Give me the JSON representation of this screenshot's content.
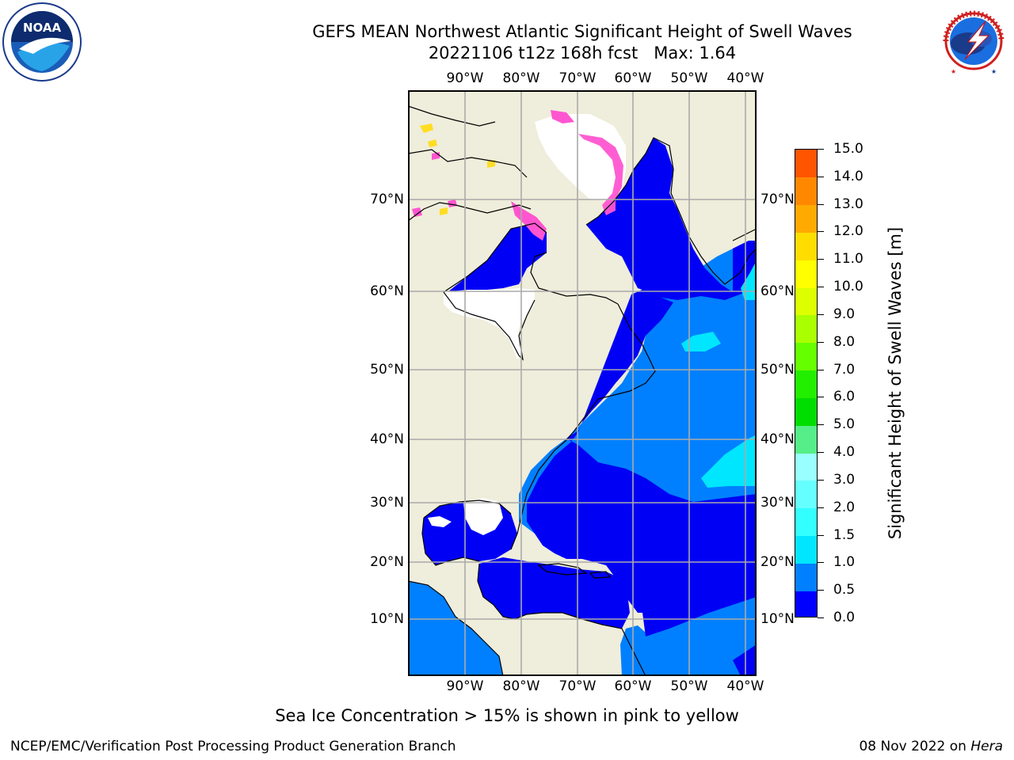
{
  "header": {
    "title_line1": "GEFS MEAN Northwest Atlantic Significant Height of Swell Waves",
    "title_line2": "20221106 t12z 168h fcst   Max: 1.64"
  },
  "logos": {
    "noaa_label": "NOAA",
    "noaa_ring_text": "NATIONAL OCEANIC AND ATMOSPHERIC ADMINISTRATION · U.S. DEPARTMENT OF COMMERCE",
    "nws_ring_text": "NATIONAL WEATHER SERVICE"
  },
  "map": {
    "lon_labels": [
      "90°W",
      "80°W",
      "70°W",
      "60°W",
      "50°W",
      "40°W"
    ],
    "lat_labels": [
      "70°N",
      "60°N",
      "50°N",
      "40°N",
      "30°N",
      "20°N",
      "10°N"
    ],
    "colors": {
      "land": "#efeddb",
      "ocean_low": "#0000f5",
      "ocean_mid": "#0080ff",
      "ocean_high": "#00e6ff",
      "ice_pink": "#ff55d0",
      "ice_yellow": "#ffdd22",
      "ice_white": "#ffffff",
      "grid": "#aaaaaa"
    }
  },
  "colorbar": {
    "title": "Significant Height of Swell Waves [m]",
    "tick_labels": [
      "0.0",
      "0.5",
      "1.0",
      "1.5",
      "2.0",
      "3.0",
      "4.0",
      "5.0",
      "6.0",
      "7.0",
      "8.0",
      "9.0",
      "10.0",
      "11.0",
      "12.0",
      "13.0",
      "14.0",
      "15.0"
    ],
    "colors": [
      "#0000ff",
      "#0080ff",
      "#00e6ff",
      "#33ffff",
      "#66ffff",
      "#99ffff",
      "#55ee88",
      "#00dd00",
      "#22ee00",
      "#66ff00",
      "#aaff00",
      "#ddff00",
      "#ffff00",
      "#ffdd00",
      "#ffaa00",
      "#ff8800",
      "#ff5500",
      "#ff0000"
    ]
  },
  "footer": {
    "caption": "Sea Ice Concentration > 15% is shown in pink to yellow",
    "left": "NCEP/EMC/Verification Post Processing Product Generation Branch",
    "right_date": "08 Nov 2022 on ",
    "right_host": "Hera"
  }
}
